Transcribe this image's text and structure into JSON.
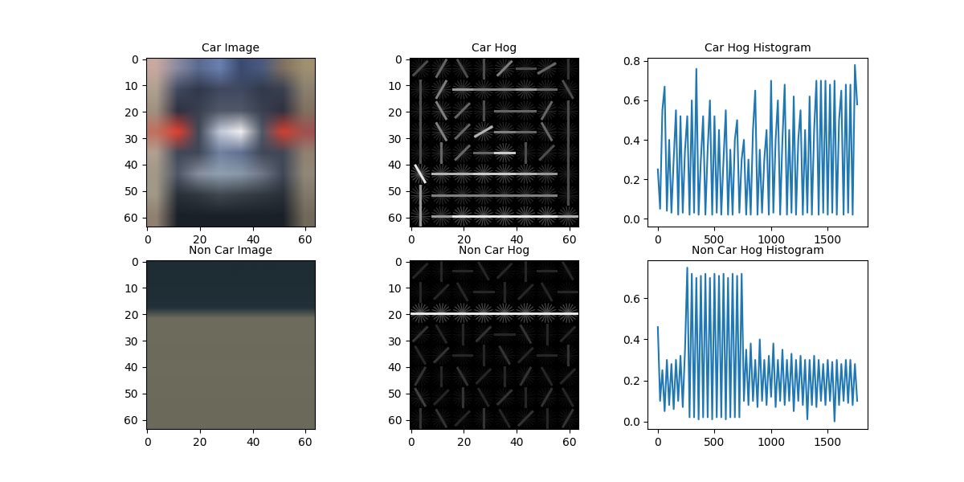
{
  "chart_data": [
    {
      "type": "image",
      "title": "Car Image",
      "xlim": [
        -0.5,
        63.5
      ],
      "ylim": [
        63.5,
        -0.5
      ],
      "xticks": [
        0,
        20,
        40,
        60
      ],
      "yticks": [
        0,
        10,
        20,
        30,
        40,
        50,
        60
      ],
      "cells": [
        [
          "#c8a8a0",
          "#8a8aa0",
          "#5a6a90",
          "#6a80b0",
          "#3a4a70",
          "#4a5a80",
          "#807060",
          "#a09070"
        ],
        [
          "#b0a090",
          "#404a60",
          "#30384a",
          "#404860",
          "#404860",
          "#303a4a",
          "#3a4050",
          "#8a8070"
        ],
        [
          "#a09080",
          "#303040",
          "#3a4050",
          "#505868",
          "#505868",
          "#3a4050",
          "#303040",
          "#807060"
        ],
        [
          "#c07060",
          "#e04030",
          "#404858",
          "#c0c8d8",
          "#f0f0f0",
          "#505868",
          "#d04030",
          "#a05050"
        ],
        [
          "#b0a090",
          "#404858",
          "#404858",
          "#7080a0",
          "#607090",
          "#404858",
          "#404858",
          "#908070"
        ],
        [
          "#a09888",
          "#505868",
          "#8890a0",
          "#90a0b0",
          "#8898a8",
          "#707888",
          "#404858",
          "#908878"
        ],
        [
          "#a09888",
          "#2a3038",
          "#303840",
          "#404850",
          "#3a4048",
          "#303840",
          "#2a3038",
          "#807868"
        ],
        [
          "#908070",
          "#1a2028",
          "#1a2028",
          "#1a2028",
          "#1a2028",
          "#1a2028",
          "#1a2028",
          "#706858"
        ]
      ]
    },
    {
      "type": "hog",
      "title": "Car Hog",
      "xlim": [
        -0.5,
        63.5
      ],
      "ylim": [
        63.5,
        -0.5
      ],
      "xticks": [
        0,
        20,
        40,
        60
      ],
      "yticks": [
        0,
        10,
        20,
        30,
        40,
        50,
        60
      ],
      "cells": [
        [
          [
            45,
            0.3
          ],
          [
            60,
            0.4
          ],
          [
            120,
            0.3
          ],
          [
            90,
            0.3
          ],
          [
            45,
            0.5
          ],
          [
            0,
            0.3
          ],
          [
            30,
            0.4
          ],
          [
            90,
            0.2
          ]
        ],
        [
          [
            90,
            0.3
          ],
          [
            60,
            0.5
          ],
          [
            0,
            0.6
          ],
          [
            0,
            0.5
          ],
          [
            0,
            0.5
          ],
          [
            0,
            0.6
          ],
          [
            0,
            0.4
          ],
          [
            120,
            0.3
          ]
        ],
        [
          [
            90,
            0.3
          ],
          [
            120,
            0.5
          ],
          [
            45,
            0.4
          ],
          [
            90,
            0.3
          ],
          [
            0,
            0.4
          ],
          [
            0,
            0.4
          ],
          [
            60,
            0.4
          ],
          [
            90,
            0.3
          ]
        ],
        [
          [
            90,
            0.3
          ],
          [
            120,
            0.5
          ],
          [
            45,
            0.4
          ],
          [
            30,
            0.7
          ],
          [
            0,
            0.5
          ],
          [
            0,
            0.4
          ],
          [
            120,
            0.4
          ],
          [
            90,
            0.3
          ]
        ],
        [
          [
            90,
            0.3
          ],
          [
            90,
            0.4
          ],
          [
            45,
            0.4
          ],
          [
            0,
            0.4
          ],
          [
            0,
            0.8
          ],
          [
            90,
            0.3
          ],
          [
            45,
            0.3
          ],
          [
            90,
            0.3
          ]
        ],
        [
          [
            120,
            0.9
          ],
          [
            0,
            0.7
          ],
          [
            0,
            0.7
          ],
          [
            0,
            0.8
          ],
          [
            0,
            0.8
          ],
          [
            0,
            0.7
          ],
          [
            0,
            0.6
          ],
          [
            90,
            0.3
          ]
        ],
        [
          [
            90,
            0.6
          ],
          [
            0,
            0.5
          ],
          [
            0,
            0.5
          ],
          [
            0,
            0.5
          ],
          [
            0,
            0.5
          ],
          [
            0,
            0.5
          ],
          [
            0,
            0.5
          ],
          [
            90,
            0.3
          ]
        ],
        [
          [
            90,
            0.6
          ],
          [
            0,
            0.6
          ],
          [
            0,
            0.9
          ],
          [
            0,
            0.9
          ],
          [
            0,
            0.9
          ],
          [
            0,
            0.9
          ],
          [
            0,
            0.9
          ],
          [
            0,
            0.7
          ]
        ]
      ]
    },
    {
      "type": "line",
      "title": "Car Hog Histogram",
      "color": "#1f77b4",
      "xlim": [
        -88,
        1852
      ],
      "ylim": [
        -0.04,
        0.816
      ],
      "xticks": [
        0,
        500,
        1000,
        1500
      ],
      "yticks": [
        0.0,
        0.2,
        0.4,
        0.6,
        0.8
      ],
      "x": [
        0,
        20,
        40,
        60,
        80,
        100,
        120,
        140,
        160,
        180,
        200,
        220,
        240,
        260,
        280,
        300,
        320,
        340,
        360,
        380,
        400,
        420,
        440,
        460,
        480,
        500,
        520,
        540,
        560,
        580,
        600,
        620,
        640,
        660,
        680,
        700,
        720,
        740,
        760,
        780,
        800,
        820,
        840,
        860,
        880,
        900,
        920,
        940,
        960,
        980,
        1000,
        1020,
        1040,
        1060,
        1080,
        1100,
        1120,
        1140,
        1160,
        1180,
        1200,
        1220,
        1240,
        1260,
        1280,
        1300,
        1320,
        1340,
        1360,
        1380,
        1400,
        1420,
        1440,
        1460,
        1480,
        1500,
        1520,
        1540,
        1560,
        1580,
        1600,
        1620,
        1640,
        1660,
        1680,
        1700,
        1720,
        1740,
        1760
      ],
      "values": [
        0.25,
        0.05,
        0.55,
        0.67,
        0.04,
        0.4,
        0.03,
        0.3,
        0.55,
        0.02,
        0.52,
        0.03,
        0.35,
        0.52,
        0.02,
        0.6,
        0.03,
        0.76,
        0.02,
        0.3,
        0.52,
        0.02,
        0.35,
        0.6,
        0.02,
        0.52,
        0.03,
        0.45,
        0.02,
        0.3,
        0.55,
        0.02,
        0.35,
        0.02,
        0.4,
        0.5,
        0.03,
        0.3,
        0.4,
        0.02,
        0.3,
        0.02,
        0.45,
        0.65,
        0.02,
        0.35,
        0.03,
        0.3,
        0.45,
        0.02,
        0.7,
        0.03,
        0.4,
        0.6,
        0.02,
        0.4,
        0.68,
        0.02,
        0.45,
        0.03,
        0.62,
        0.02,
        0.4,
        0.55,
        0.02,
        0.45,
        0.03,
        0.62,
        0.02,
        0.45,
        0.7,
        0.02,
        0.7,
        0.03,
        0.7,
        0.02,
        0.68,
        0.03,
        0.7,
        0.02,
        0.5,
        0.65,
        0.02,
        0.68,
        0.03,
        0.68,
        0.02,
        0.78,
        0.58
      ]
    },
    {
      "type": "image",
      "title": "Non Car Image",
      "xlim": [
        -0.5,
        63.5
      ],
      "ylim": [
        63.5,
        -0.5
      ],
      "xticks": [
        0,
        20,
        40,
        60
      ],
      "yticks": [
        0,
        10,
        20,
        30,
        40,
        50,
        60
      ],
      "cells": [
        [
          "#1e2c34"
        ],
        [
          "#1e2c34"
        ],
        [
          "#1f2d35"
        ],
        [
          "#202e36"
        ],
        [
          "#22323a"
        ],
        [
          "#6e6c5c"
        ],
        [
          "#6d6b5b"
        ],
        [
          "#6e6c5c"
        ],
        [
          "#6c6a5a"
        ],
        [
          "#6d6b5b"
        ],
        [
          "#6e6c5c"
        ],
        [
          "#6c6a5a"
        ],
        [
          "#6d6b5b"
        ],
        [
          "#6b695a"
        ],
        [
          "#6c6a5a"
        ],
        [
          "#6b695a"
        ]
      ]
    },
    {
      "type": "hog",
      "title": "Non Car Hog",
      "xlim": [
        -0.5,
        63.5
      ],
      "ylim": [
        63.5,
        -0.5
      ],
      "xticks": [
        0,
        20,
        40,
        60
      ],
      "yticks": [
        0,
        10,
        20,
        30,
        40,
        50,
        60
      ],
      "cells": [
        [
          [
            45,
            0.15
          ],
          [
            90,
            0.15
          ],
          [
            0,
            0.15
          ],
          [
            120,
            0.15
          ],
          [
            45,
            0.15
          ],
          [
            90,
            0.15
          ],
          [
            0,
            0.15
          ],
          [
            120,
            0.15
          ]
        ],
        [
          [
            90,
            0.15
          ],
          [
            45,
            0.15
          ],
          [
            120,
            0.15
          ],
          [
            0,
            0.15
          ],
          [
            90,
            0.15
          ],
          [
            45,
            0.15
          ],
          [
            120,
            0.15
          ],
          [
            0,
            0.15
          ]
        ],
        [
          [
            0,
            0.9
          ],
          [
            0,
            0.9
          ],
          [
            0,
            0.9
          ],
          [
            0,
            0.9
          ],
          [
            0,
            0.9
          ],
          [
            0,
            0.9
          ],
          [
            0,
            0.9
          ],
          [
            0,
            0.9
          ]
        ],
        [
          [
            45,
            0.2
          ],
          [
            120,
            0.15
          ],
          [
            90,
            0.15
          ],
          [
            45,
            0.2
          ],
          [
            0,
            0.15
          ],
          [
            120,
            0.2
          ],
          [
            90,
            0.15
          ],
          [
            45,
            0.15
          ]
        ],
        [
          [
            120,
            0.15
          ],
          [
            45,
            0.2
          ],
          [
            0,
            0.15
          ],
          [
            90,
            0.15
          ],
          [
            120,
            0.2
          ],
          [
            45,
            0.15
          ],
          [
            0,
            0.15
          ],
          [
            90,
            0.2
          ]
        ],
        [
          [
            60,
            0.2
          ],
          [
            90,
            0.15
          ],
          [
            120,
            0.2
          ],
          [
            45,
            0.15
          ],
          [
            90,
            0.15
          ],
          [
            60,
            0.2
          ],
          [
            120,
            0.15
          ],
          [
            45,
            0.15
          ]
        ],
        [
          [
            120,
            0.25
          ],
          [
            45,
            0.15
          ],
          [
            90,
            0.2
          ],
          [
            120,
            0.15
          ],
          [
            45,
            0.2
          ],
          [
            90,
            0.15
          ],
          [
            60,
            0.2
          ],
          [
            120,
            0.15
          ]
        ],
        [
          [
            90,
            0.2
          ],
          [
            120,
            0.2
          ],
          [
            45,
            0.15
          ],
          [
            90,
            0.2
          ],
          [
            120,
            0.15
          ],
          [
            45,
            0.2
          ],
          [
            90,
            0.15
          ],
          [
            60,
            0.2
          ]
        ]
      ]
    },
    {
      "type": "line",
      "title": "Non Car Hog Histogram",
      "color": "#1f77b4",
      "xlim": [
        -88,
        1852
      ],
      "ylim": [
        -0.037,
        0.786
      ],
      "xticks": [
        0,
        500,
        1000,
        1500
      ],
      "yticks": [
        0.0,
        0.2,
        0.4,
        0.6
      ],
      "x": [
        0,
        20,
        40,
        60,
        80,
        100,
        120,
        140,
        160,
        180,
        200,
        220,
        240,
        260,
        280,
        300,
        320,
        340,
        360,
        380,
        400,
        420,
        440,
        460,
        480,
        500,
        520,
        540,
        560,
        580,
        600,
        620,
        640,
        660,
        680,
        700,
        720,
        740,
        760,
        780,
        800,
        820,
        840,
        860,
        880,
        900,
        920,
        940,
        960,
        980,
        1000,
        1020,
        1040,
        1060,
        1080,
        1100,
        1120,
        1140,
        1160,
        1180,
        1200,
        1220,
        1240,
        1260,
        1280,
        1300,
        1320,
        1340,
        1360,
        1380,
        1400,
        1420,
        1440,
        1460,
        1480,
        1500,
        1520,
        1540,
        1560,
        1580,
        1600,
        1620,
        1640,
        1660,
        1680,
        1700,
        1720,
        1740,
        1760
      ],
      "values": [
        0.46,
        0.1,
        0.25,
        0.05,
        0.3,
        0.08,
        0.28,
        0.06,
        0.3,
        0.1,
        0.32,
        0.07,
        0.35,
        0.75,
        0.02,
        0.72,
        0.02,
        0.7,
        0.01,
        0.71,
        0.02,
        0.72,
        0.02,
        0.7,
        0.01,
        0.72,
        0.02,
        0.71,
        0.02,
        0.72,
        0.01,
        0.7,
        0.02,
        0.72,
        0.02,
        0.71,
        0.02,
        0.72,
        0.1,
        0.35,
        0.08,
        0.38,
        0.1,
        0.3,
        0.07,
        0.4,
        0.1,
        0.3,
        0.08,
        0.32,
        0.12,
        0.38,
        0.07,
        0.3,
        0.1,
        0.35,
        0.08,
        0.3,
        0.1,
        0.33,
        0.05,
        0.3,
        0.1,
        0.32,
        0.08,
        0.3,
        0.01,
        0.3,
        0.08,
        0.32,
        0.07,
        0.3,
        0.1,
        0.28,
        0.08,
        0.3,
        0.1,
        0.29,
        0.0,
        0.3,
        0.08,
        0.28,
        0.1,
        0.3,
        0.09,
        0.3,
        0.08,
        0.28,
        0.1
      ]
    }
  ]
}
